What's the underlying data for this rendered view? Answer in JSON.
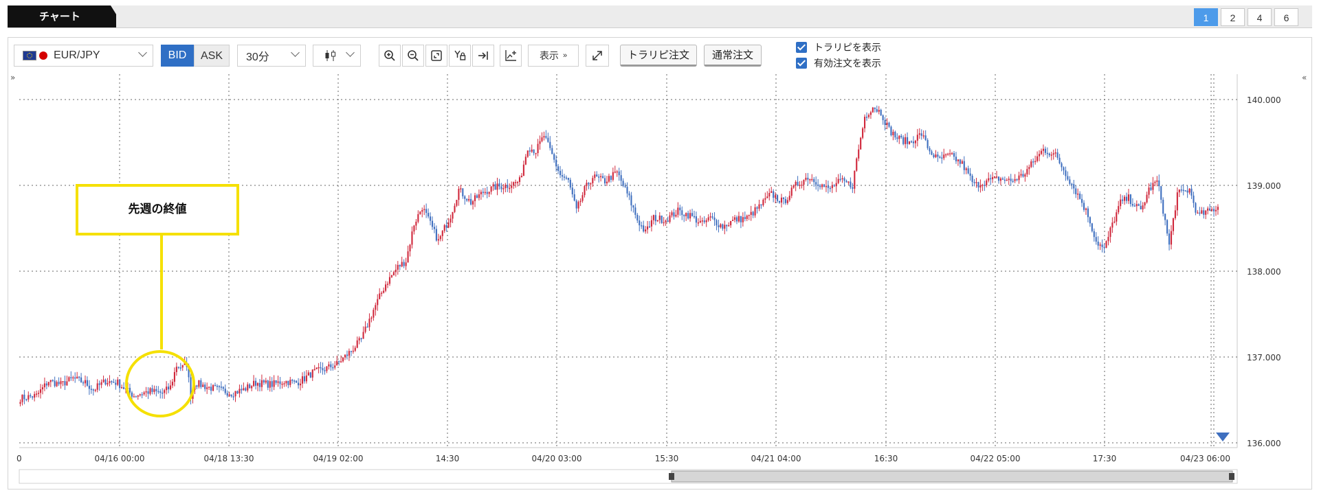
{
  "tabs": {
    "chart_label": "チャート",
    "layouts": [
      "1",
      "2",
      "4",
      "6"
    ],
    "active_layout": "1"
  },
  "toolbar": {
    "symbol": "EUR/JPY",
    "bid_label": "BID",
    "ask_label": "ASK",
    "interval": "30分",
    "display_label": "表示",
    "tralipi_order_label": "トラリピ注文",
    "normal_order_label": "通常注文",
    "show_tralipi_label": "トラリピを表示",
    "show_active_orders_label": "有効注文を表示",
    "show_tralipi_checked": true,
    "show_active_orders_checked": true
  },
  "annotation": {
    "label": "先週の終値"
  },
  "colors": {
    "up": "#d0283c",
    "down": "#3f6fbf",
    "accent": "#4d9bea",
    "callout": "#f5e000",
    "grid": "#555555"
  },
  "icons": [
    "eu-flag-icon",
    "jp-flag-icon",
    "candlestick-icon",
    "zoom-in-icon",
    "zoom-out-icon",
    "fit-icon",
    "y-lock-icon",
    "scroll-end-icon",
    "add-indicator-icon",
    "fullscreen-icon",
    "expand-left-icon",
    "collapse-right-icon",
    "marker-triangle-icon"
  ],
  "chart_data": {
    "type": "candlestick",
    "symbol": "EUR/JPY",
    "interval": "30分",
    "ylim": [
      136.0,
      140.1
    ],
    "y_ticks": [
      "136.000",
      "137.000",
      "138.000",
      "139.000",
      "140.000"
    ],
    "x_ticks": [
      "04/16 00:00",
      "04/18 13:30",
      "04/19 02:00",
      "14:30",
      "04/20 03:00",
      "15:30",
      "04/21 04:00",
      "16:30",
      "04/22 05:00",
      "17:30",
      "04/23 06:00"
    ],
    "x_tick_partial_left": "0",
    "grid": true,
    "previous_week_close": 136.58,
    "close_path": [
      [
        0,
        136.52
      ],
      [
        8,
        136.55
      ],
      [
        14,
        136.72
      ],
      [
        20,
        136.68
      ],
      [
        26,
        136.75
      ],
      [
        32,
        136.7
      ],
      [
        36,
        136.62
      ],
      [
        42,
        136.72
      ],
      [
        48,
        136.7
      ],
      [
        52,
        136.62
      ],
      [
        56,
        136.55
      ],
      [
        60,
        136.58
      ],
      [
        64,
        136.6
      ],
      [
        70,
        136.58
      ],
      [
        74,
        136.65
      ],
      [
        77,
        136.9
      ],
      [
        80,
        136.88
      ],
      [
        82,
        136.92
      ],
      [
        84,
        136.55
      ],
      [
        86,
        136.7
      ],
      [
        92,
        136.65
      ],
      [
        98,
        136.62
      ],
      [
        104,
        136.58
      ],
      [
        110,
        136.62
      ],
      [
        116,
        136.7
      ],
      [
        124,
        136.68
      ],
      [
        130,
        136.72
      ],
      [
        136,
        136.7
      ],
      [
        140,
        136.75
      ],
      [
        144,
        136.82
      ],
      [
        150,
        136.86
      ],
      [
        156,
        136.92
      ],
      [
        162,
        137.05
      ],
      [
        168,
        137.2
      ],
      [
        174,
        137.55
      ],
      [
        180,
        137.85
      ],
      [
        186,
        138.05
      ],
      [
        190,
        138.12
      ],
      [
        194,
        138.55
      ],
      [
        198,
        138.75
      ],
      [
        202,
        138.55
      ],
      [
        206,
        138.35
      ],
      [
        212,
        138.65
      ],
      [
        216,
        138.95
      ],
      [
        222,
        138.8
      ],
      [
        228,
        138.92
      ],
      [
        234,
        138.98
      ],
      [
        240,
        139.0
      ],
      [
        246,
        139.05
      ],
      [
        250,
        139.45
      ],
      [
        254,
        139.4
      ],
      [
        258,
        139.58
      ],
      [
        262,
        139.35
      ],
      [
        266,
        139.12
      ],
      [
        270,
        139.05
      ],
      [
        274,
        138.7
      ],
      [
        278,
        138.95
      ],
      [
        282,
        139.1
      ],
      [
        288,
        139.05
      ],
      [
        294,
        139.15
      ],
      [
        300,
        138.85
      ],
      [
        304,
        138.6
      ],
      [
        308,
        138.45
      ],
      [
        312,
        138.62
      ],
      [
        318,
        138.6
      ],
      [
        324,
        138.7
      ],
      [
        330,
        138.65
      ],
      [
        336,
        138.55
      ],
      [
        340,
        138.62
      ],
      [
        346,
        138.52
      ],
      [
        352,
        138.6
      ],
      [
        358,
        138.62
      ],
      [
        364,
        138.75
      ],
      [
        370,
        138.9
      ],
      [
        376,
        138.8
      ],
      [
        382,
        139.0
      ],
      [
        388,
        139.1
      ],
      [
        392,
        139.05
      ],
      [
        398,
        138.95
      ],
      [
        404,
        139.05
      ],
      [
        410,
        139.0
      ],
      [
        412,
        139.3
      ],
      [
        416,
        139.8
      ],
      [
        420,
        139.92
      ],
      [
        424,
        139.85
      ],
      [
        428,
        139.65
      ],
      [
        432,
        139.55
      ],
      [
        438,
        139.5
      ],
      [
        444,
        139.6
      ],
      [
        448,
        139.4
      ],
      [
        452,
        139.3
      ],
      [
        458,
        139.35
      ],
      [
        464,
        139.25
      ],
      [
        470,
        139.0
      ],
      [
        476,
        139.05
      ],
      [
        482,
        139.08
      ],
      [
        488,
        139.05
      ],
      [
        494,
        139.12
      ],
      [
        500,
        139.3
      ],
      [
        504,
        139.42
      ],
      [
        510,
        139.35
      ],
      [
        516,
        139.1
      ],
      [
        522,
        138.85
      ],
      [
        526,
        138.65
      ],
      [
        530,
        138.35
      ],
      [
        534,
        138.25
      ],
      [
        538,
        138.55
      ],
      [
        542,
        138.8
      ],
      [
        546,
        138.85
      ],
      [
        552,
        138.7
      ],
      [
        556,
        138.95
      ],
      [
        560,
        139.05
      ],
      [
        562,
        138.85
      ],
      [
        566,
        138.3
      ],
      [
        570,
        138.9
      ],
      [
        576,
        138.95
      ],
      [
        580,
        138.65
      ],
      [
        586,
        138.7
      ],
      [
        590,
        138.75
      ]
    ]
  }
}
